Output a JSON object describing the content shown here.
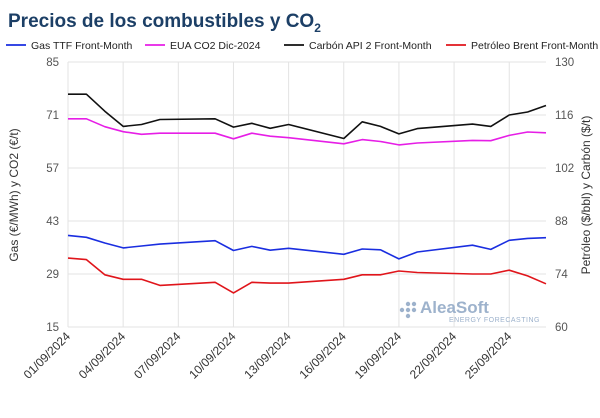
{
  "chart_data": {
    "type": "line",
    "title": "Precios de los combustibles y CO",
    "title_subscript": "2",
    "ylabel_left": "Gas (€/MWh) y CO2 (€/t)",
    "ylabel_right": "Petróleo ($/bbl) y Carbón ($/t)",
    "ylim_left": [
      15,
      85
    ],
    "ylim_right": [
      60,
      130
    ],
    "yticks_left": [
      15,
      29,
      43,
      57,
      71,
      85
    ],
    "yticks_right": [
      60,
      74,
      88,
      102,
      116,
      130
    ],
    "x": [
      "01/09/2024",
      "02/09/2024",
      "03/09/2024",
      "04/09/2024",
      "05/09/2024",
      "06/09/2024",
      "09/09/2024",
      "10/09/2024",
      "11/09/2024",
      "12/09/2024",
      "13/09/2024",
      "16/09/2024",
      "17/09/2024",
      "18/09/2024",
      "19/09/2024",
      "20/09/2024",
      "23/09/2024",
      "24/09/2024",
      "25/09/2024",
      "26/09/2024",
      "27/09/2024"
    ],
    "xtick_labels": [
      "01/09/2024",
      "04/09/2024",
      "07/09/2024",
      "10/09/2024",
      "13/09/2024",
      "16/09/2024",
      "19/09/2024",
      "22/09/2024",
      "25/09/2024"
    ],
    "grid": true,
    "legend_position": "top",
    "series": [
      {
        "name": "Gas TTF Front-Month",
        "color": "#1a2ee0",
        "axis": "left",
        "values": [
          39.2,
          38.7,
          37.2,
          35.9,
          36.4,
          36.9,
          37.8,
          35.2,
          36.3,
          35.3,
          35.8,
          34.2,
          35.6,
          35.4,
          33.0,
          34.8,
          36.6,
          35.5,
          37.9,
          38.4,
          38.6
        ]
      },
      {
        "name": "EUA CO2 Dic-2024",
        "color": "#e61ee6",
        "axis": "left",
        "values": [
          70.0,
          70.0,
          67.9,
          66.6,
          65.9,
          66.2,
          66.2,
          64.7,
          66.2,
          65.4,
          65.0,
          63.4,
          64.5,
          64.0,
          63.1,
          63.6,
          64.3,
          64.2,
          65.6,
          66.5,
          66.3
        ]
      },
      {
        "name": "Carbón API 2 Front-Month",
        "color": "#111111",
        "axis": "right",
        "values": [
          121.5,
          121.5,
          117.0,
          113.0,
          113.5,
          114.8,
          115.0,
          112.8,
          113.8,
          112.5,
          113.5,
          109.8,
          114.2,
          113.0,
          111.0,
          112.4,
          113.6,
          113.0,
          116.0,
          116.8,
          118.5
        ]
      },
      {
        "name": "Petróleo Brent Front-Month",
        "color": "#e0151b",
        "axis": "right",
        "values": [
          78.2,
          77.8,
          73.8,
          72.6,
          72.6,
          71.0,
          71.8,
          69.0,
          71.8,
          71.6,
          71.6,
          72.6,
          73.8,
          73.8,
          74.8,
          74.4,
          74.0,
          74.0,
          75.0,
          73.5,
          71.4
        ]
      }
    ]
  },
  "watermark": {
    "brand": "AleaSoft",
    "tagline": "ENERGY FORECASTING"
  }
}
